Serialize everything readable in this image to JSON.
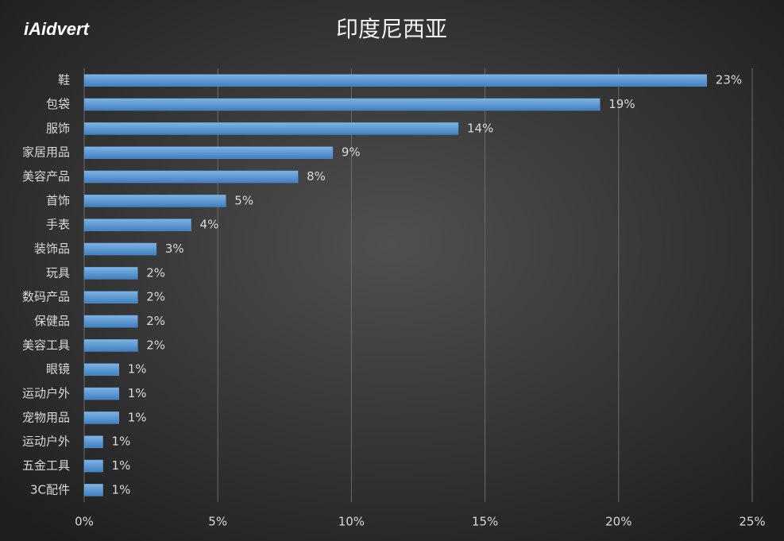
{
  "logo": "iAidvert",
  "chart_data": {
    "type": "hbar",
    "title": "印度尼西亚",
    "categories": [
      "鞋",
      "包袋",
      "服饰",
      "家居用品",
      "美容产品",
      "首饰",
      "手表",
      "装饰品",
      "玩具",
      "数码产品",
      "保健品",
      "美容工具",
      "眼镜",
      "运动户外",
      "宠物用品",
      "运动户外",
      "五金工具",
      "3C配件"
    ],
    "values": [
      23.3,
      19.3,
      14,
      9.3,
      8,
      5.3,
      4,
      2.7,
      2,
      2,
      2,
      2,
      1.3,
      1.3,
      1.3,
      0.7,
      0.7,
      0.7
    ],
    "value_labels": [
      "23%",
      "19%",
      "14%",
      "9%",
      "8%",
      "5%",
      "4%",
      "3%",
      "2%",
      "2%",
      "2%",
      "2%",
      "1%",
      "1%",
      "1%",
      "1%",
      "1%",
      "1%"
    ],
    "color": "#5b9bd5",
    "xlim": [
      0,
      25
    ],
    "xticks": [
      {
        "value": 0,
        "label": "0%"
      },
      {
        "value": 5,
        "label": "5%"
      },
      {
        "value": 10,
        "label": "10%"
      },
      {
        "value": 15,
        "label": "15%"
      },
      {
        "value": 20,
        "label": "20%"
      },
      {
        "value": 25,
        "label": "25%"
      }
    ],
    "grid": true
  }
}
